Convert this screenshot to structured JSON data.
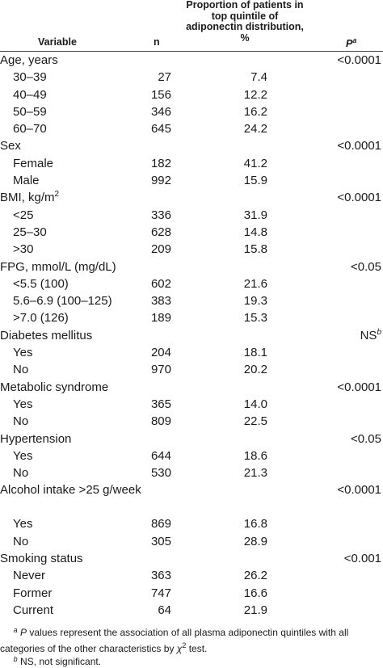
{
  "header": {
    "variable": "Variable",
    "n": "n",
    "proportion": "Proportion of patients in top quintile of adiponectin distribution, %",
    "p": "P",
    "p_mark": "a"
  },
  "rows": [
    {
      "label": "Age, years",
      "n": "",
      "pct": "",
      "p": "<0.0001",
      "sub": false
    },
    {
      "label": "30–39",
      "n": "27",
      "pct": "7.4",
      "p": "",
      "sub": true
    },
    {
      "label": "40–49",
      "n": "156",
      "pct": "12.2",
      "p": "",
      "sub": true
    },
    {
      "label": "50–59",
      "n": "346",
      "pct": "16.2",
      "p": "",
      "sub": true
    },
    {
      "label": "60–70",
      "n": "645",
      "pct": "24.2",
      "p": "",
      "sub": true
    },
    {
      "label": "Sex",
      "n": "",
      "pct": "",
      "p": "<0.0001",
      "sub": false
    },
    {
      "label": "Female",
      "n": "182",
      "pct": "41.2",
      "p": "",
      "sub": true
    },
    {
      "label": "Male",
      "n": "992",
      "pct": "15.9",
      "p": "",
      "sub": true
    },
    {
      "label": "BMI, kg/m",
      "label_sup": "2",
      "n": "",
      "pct": "",
      "p": "<0.0001",
      "sub": false
    },
    {
      "label": "<25",
      "n": "336",
      "pct": "31.9",
      "p": "",
      "sub": true
    },
    {
      "label": "25–30",
      "n": "628",
      "pct": "14.8",
      "p": "",
      "sub": true
    },
    {
      "label": ">30",
      "n": "209",
      "pct": "15.8",
      "p": "",
      "sub": true
    },
    {
      "label": "FPG, mmol/L (mg/dL)",
      "n": "",
      "pct": "",
      "p": "<0.05",
      "sub": false
    },
    {
      "label": "<5.5 (100)",
      "n": "602",
      "pct": "21.6",
      "p": "",
      "sub": true
    },
    {
      "label": "5.6–6.9 (100–125)",
      "n": "383",
      "pct": "19.3",
      "p": "",
      "sub": true
    },
    {
      "label": ">7.0 (126)",
      "n": "189",
      "pct": "15.3",
      "p": "",
      "sub": true
    },
    {
      "label": "Diabetes mellitus",
      "n": "",
      "pct": "",
      "p": "NS",
      "p_sup": "b",
      "sub": false
    },
    {
      "label": "Yes",
      "n": "204",
      "pct": "18.1",
      "p": "",
      "sub": true
    },
    {
      "label": "No",
      "n": "970",
      "pct": "20.2",
      "p": "",
      "sub": true
    },
    {
      "label": "Metabolic syndrome",
      "n": "",
      "pct": "",
      "p": "<0.0001",
      "sub": false
    },
    {
      "label": "Yes",
      "n": "365",
      "pct": "14.0",
      "p": "",
      "sub": true
    },
    {
      "label": "No",
      "n": "809",
      "pct": "22.5",
      "p": "",
      "sub": true
    },
    {
      "label": "Hypertension",
      "n": "",
      "pct": "",
      "p": "<0.05",
      "sub": false
    },
    {
      "label": "Yes",
      "n": "644",
      "pct": "18.6",
      "p": "",
      "sub": true
    },
    {
      "label": "No",
      "n": "530",
      "pct": "21.3",
      "p": "",
      "sub": true
    },
    {
      "label": "Alcohol intake >25 g/week",
      "n": "",
      "pct": "",
      "p": "<0.0001",
      "sub": false,
      "tall": true
    },
    {
      "label": "Yes",
      "n": "869",
      "pct": "16.8",
      "p": "",
      "sub": true
    },
    {
      "label": "No",
      "n": "305",
      "pct": "28.9",
      "p": "",
      "sub": true
    },
    {
      "label": "Smoking status",
      "n": "",
      "pct": "",
      "p": "<0.001",
      "sub": false
    },
    {
      "label": "Never",
      "n": "363",
      "pct": "26.2",
      "p": "",
      "sub": true
    },
    {
      "label": "Former",
      "n": "747",
      "pct": "16.6",
      "p": "",
      "sub": true
    },
    {
      "label": "Current",
      "n": "64",
      "pct": "21.9",
      "p": "",
      "sub": true
    }
  ],
  "footnotes": {
    "a_mark": "a",
    "a_p": "P",
    "a_text": " values represent the association of all plasma adiponectin quintiles with all categories of the other characteristics by ",
    "a_chi": "χ",
    "a_chi_sup": "2",
    "a_end": " test.",
    "b_mark": "b",
    "b_text": " NS, not significant."
  }
}
